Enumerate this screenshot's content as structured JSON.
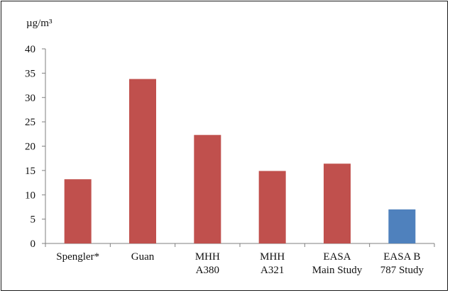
{
  "chart_data": {
    "type": "bar",
    "unit_label": "µg/m³",
    "categories": [
      [
        "Spengler*"
      ],
      [
        "Guan"
      ],
      [
        "MHH",
        "A380"
      ],
      [
        "MHH",
        "A321"
      ],
      [
        "EASA",
        "Main Study"
      ],
      [
        "EASA B",
        "787 Study"
      ]
    ],
    "values": [
      13.2,
      33.8,
      22.3,
      14.9,
      16.4,
      7.0
    ],
    "bar_colors": [
      "#c0504d",
      "#c0504d",
      "#c0504d",
      "#c0504d",
      "#c0504d",
      "#4f81bd"
    ],
    "ylim": [
      0,
      40
    ],
    "yticks": [
      0,
      5,
      10,
      15,
      20,
      25,
      30,
      35,
      40
    ],
    "grid": false,
    "legend": "none",
    "title": "",
    "xlabel": "",
    "ylabel": ""
  }
}
